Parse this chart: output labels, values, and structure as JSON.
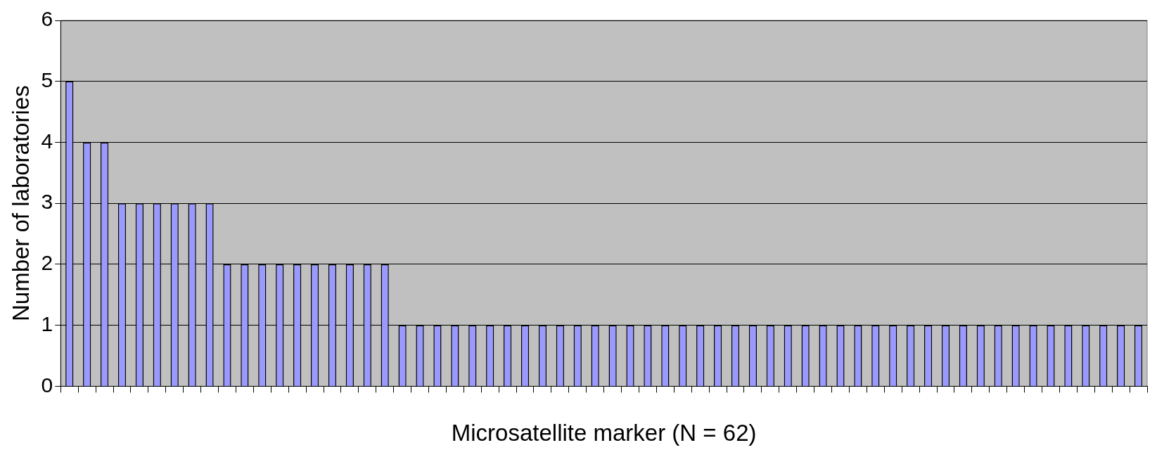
{
  "chart_data": {
    "type": "bar",
    "xlabel": "Microsatellite marker (N = 62)",
    "ylabel": "Number of laboratories",
    "categories": [
      null,
      null,
      null,
      null,
      null,
      null,
      null,
      null,
      null,
      null,
      null,
      null,
      null,
      null,
      null,
      null,
      null,
      null,
      null,
      null,
      null,
      null,
      null,
      null,
      null,
      null,
      null,
      null,
      null,
      null,
      null,
      null,
      null,
      null,
      null,
      null,
      null,
      null,
      null,
      null,
      null,
      null,
      null,
      null,
      null,
      null,
      null,
      null,
      null,
      null,
      null,
      null,
      null,
      null,
      null,
      null,
      null,
      null,
      null,
      null,
      null,
      null
    ],
    "values": [
      5,
      4,
      4,
      3,
      3,
      3,
      3,
      3,
      3,
      2,
      2,
      2,
      2,
      2,
      2,
      2,
      2,
      2,
      2,
      1,
      1,
      1,
      1,
      1,
      1,
      1,
      1,
      1,
      1,
      1,
      1,
      1,
      1,
      1,
      1,
      1,
      1,
      1,
      1,
      1,
      1,
      1,
      1,
      1,
      1,
      1,
      1,
      1,
      1,
      1,
      1,
      1,
      1,
      1,
      1,
      1,
      1,
      1,
      1,
      1,
      1,
      1
    ],
    "color": "#9999ff",
    "ylim": [
      0,
      6
    ],
    "yticks": [
      0,
      1,
      2,
      3,
      4,
      5,
      6
    ],
    "grid": "y",
    "tick_labels": "y",
    "legend": false
  }
}
